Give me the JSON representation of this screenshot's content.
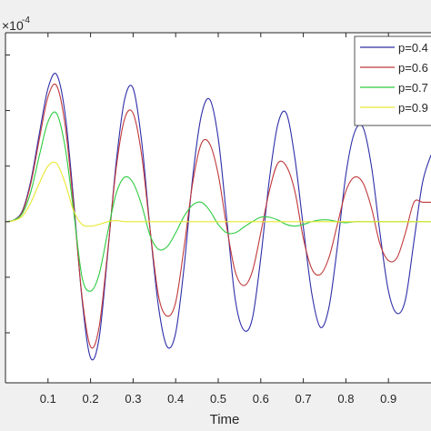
{
  "chart_data": {
    "type": "line",
    "title": "",
    "xlabel": "Time",
    "ylabel": "",
    "y_exponent_label": "×10",
    "y_exponent": "-4",
    "xlim": [
      0,
      1
    ],
    "ylim": [
      -2.9,
      3.4
    ],
    "x_ticks": [
      0.1,
      0.2,
      0.3,
      0.4,
      0.5,
      0.6,
      0.7,
      0.8,
      0.9
    ],
    "x_tick_labels": [
      "0.1",
      "0.2",
      "0.3",
      "0.4",
      "0.5",
      "0.6",
      "0.7",
      "0.8",
      "0.9"
    ],
    "y_ticks": [
      -2,
      -1,
      0,
      1,
      2,
      3
    ],
    "grid": false,
    "legend_position": "top-right",
    "series": [
      {
        "name": "p=0.4",
        "color": "#2e2ea8",
        "x": [
          0,
          0.02,
          0.04,
          0.06,
          0.08,
          0.1,
          0.12,
          0.14,
          0.16,
          0.18,
          0.2,
          0.22,
          0.24,
          0.26,
          0.28,
          0.3,
          0.32,
          0.34,
          0.36,
          0.38,
          0.4,
          0.42,
          0.44,
          0.46,
          0.48,
          0.5,
          0.52,
          0.54,
          0.56,
          0.58,
          0.6,
          0.62,
          0.64,
          0.66,
          0.68,
          0.7,
          0.72,
          0.74,
          0.76,
          0.78,
          0.8,
          0.82,
          0.84,
          0.86,
          0.88,
          0.9,
          0.92,
          0.94,
          0.96,
          0.98,
          1.0
        ],
        "y": [
          0,
          0.03,
          0.2,
          0.75,
          1.6,
          2.4,
          2.65,
          1.95,
          0.4,
          -1.4,
          -2.45,
          -2.1,
          -0.6,
          1.05,
          2.2,
          2.4,
          1.45,
          -0.15,
          -1.55,
          -2.25,
          -2.0,
          -0.8,
          0.8,
          1.9,
          2.2,
          1.5,
          0.05,
          -1.4,
          -1.95,
          -1.75,
          -0.65,
          0.75,
          1.75,
          1.95,
          1.15,
          -0.1,
          -1.3,
          -1.9,
          -1.55,
          -0.45,
          0.85,
          1.6,
          1.7,
          1.0,
          -0.2,
          -1.25,
          -1.65,
          -1.4,
          -0.35,
          0.7,
          1.2
        ]
      },
      {
        "name": "p=0.6",
        "color": "#c0393b",
        "x": [
          0,
          0.02,
          0.04,
          0.06,
          0.08,
          0.1,
          0.12,
          0.14,
          0.16,
          0.18,
          0.2,
          0.22,
          0.24,
          0.26,
          0.28,
          0.3,
          0.32,
          0.34,
          0.36,
          0.38,
          0.4,
          0.42,
          0.44,
          0.46,
          0.48,
          0.5,
          0.52,
          0.54,
          0.56,
          0.58,
          0.6,
          0.62,
          0.64,
          0.66,
          0.68,
          0.7,
          0.72,
          0.74,
          0.76,
          0.78,
          0.8,
          0.82,
          0.84,
          0.86,
          0.88,
          0.9,
          0.92,
          0.94,
          0.96,
          0.98,
          1.0
        ],
        "y": [
          0,
          0.03,
          0.18,
          0.7,
          1.5,
          2.25,
          2.45,
          1.75,
          0.3,
          -1.35,
          -2.25,
          -1.9,
          -0.55,
          0.95,
          1.85,
          1.95,
          1.2,
          -0.15,
          -1.35,
          -1.7,
          -1.45,
          -0.45,
          0.7,
          1.4,
          1.4,
          0.85,
          -0.1,
          -0.9,
          -1.15,
          -0.9,
          -0.2,
          0.55,
          1.05,
          1.0,
          0.55,
          -0.3,
          -0.85,
          -0.95,
          -0.65,
          -0.05,
          0.55,
          0.8,
          0.7,
          0.25,
          -0.4,
          -0.7,
          -0.65,
          -0.2,
          0.35,
          0.35,
          0.35
        ]
      },
      {
        "name": "p=0.7",
        "color": "#2ecc40",
        "x": [
          0,
          0.02,
          0.04,
          0.06,
          0.08,
          0.1,
          0.12,
          0.14,
          0.16,
          0.18,
          0.2,
          0.22,
          0.24,
          0.26,
          0.28,
          0.3,
          0.32,
          0.34,
          0.36,
          0.38,
          0.4,
          0.42,
          0.44,
          0.46,
          0.48,
          0.5,
          0.52,
          0.54,
          0.56,
          0.58,
          0.6,
          0.62,
          0.64,
          0.66,
          0.68,
          0.7,
          0.72,
          0.74,
          0.76,
          0.78,
          0.8,
          0.82,
          0.84,
          0.86,
          0.88,
          0.9,
          0.92,
          0.94,
          0.96,
          0.98,
          1.0
        ],
        "y": [
          0,
          0.03,
          0.15,
          0.55,
          1.2,
          1.8,
          1.95,
          1.35,
          0.2,
          -1.0,
          -1.25,
          -0.95,
          -0.2,
          0.5,
          0.8,
          0.7,
          0.3,
          -0.25,
          -0.5,
          -0.45,
          -0.2,
          0.1,
          0.3,
          0.35,
          0.2,
          -0.05,
          -0.2,
          -0.2,
          -0.1,
          0.0,
          0.08,
          0.08,
          0.03,
          -0.05,
          -0.08,
          -0.05,
          0.0,
          0.03,
          0.03,
          0.0,
          -0.02,
          0.0,
          0.0,
          0.0,
          0.0,
          0.0,
          0.0,
          0.0,
          0.0,
          0.0,
          0.0
        ]
      },
      {
        "name": "p=0.9",
        "color": "#e8e830",
        "x": [
          0,
          0.02,
          0.04,
          0.06,
          0.08,
          0.1,
          0.12,
          0.14,
          0.16,
          0.18,
          0.2,
          0.22,
          0.24,
          0.26,
          0.28,
          0.3,
          0.32,
          0.34,
          0.36,
          0.38,
          0.4,
          0.42,
          0.44,
          0.46,
          0.48,
          0.5,
          0.52,
          0.54,
          0.56,
          0.58,
          0.6,
          0.62,
          0.64,
          0.66,
          0.68,
          0.7,
          0.72,
          0.74,
          0.76,
          0.78,
          0.8,
          0.82,
          0.84,
          0.86,
          0.88,
          0.9,
          0.92,
          0.94,
          0.96,
          0.98,
          1.0
        ],
        "y": [
          0,
          0.02,
          0.1,
          0.35,
          0.7,
          1.0,
          1.05,
          0.7,
          0.2,
          -0.05,
          -0.08,
          -0.05,
          0.0,
          0.02,
          0.0,
          0.0,
          0.0,
          0.0,
          0.0,
          0.0,
          0.0,
          0.0,
          0.0,
          0.0,
          0.0,
          0.0,
          0.0,
          0.0,
          0.0,
          0.0,
          0.0,
          0.0,
          0.0,
          0.0,
          0.0,
          0.0,
          0.0,
          0.0,
          0.0,
          0.0,
          0.0,
          0.0,
          0.0,
          0.0,
          0.0,
          0.0,
          0.0,
          0.0,
          0.0,
          0.0,
          0.0
        ]
      }
    ]
  }
}
